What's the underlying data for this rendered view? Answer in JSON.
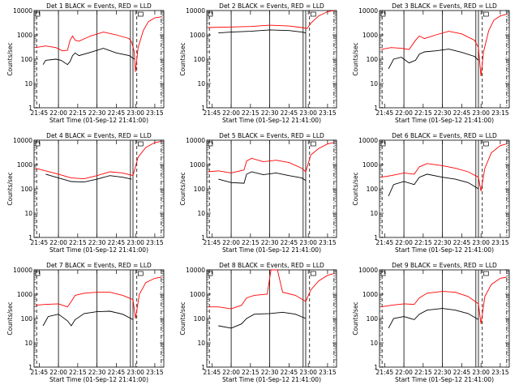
{
  "chart_data": [
    {
      "type": "line",
      "title": "Det  1  BLACK = Events, RED = LLD",
      "xlabel": "Start Time (01-Sep-12 21:41:00)",
      "ylabel": "Counts/sec",
      "ylim": [
        1,
        10000
      ],
      "yscale": "log",
      "xlim": [
        "21:41",
        "23:22"
      ],
      "xticks": [
        "21:45",
        "22:00",
        "22:15",
        "22:30",
        "22:45",
        "23:00",
        "23:15"
      ],
      "yticks": [
        "1",
        "10",
        "100",
        "1000",
        "10000"
      ],
      "series": [
        {
          "name": "Events",
          "color": "#000000",
          "x": [
            "21:48",
            "21:50",
            "21:58",
            "22:02",
            "22:07",
            "22:09",
            "22:11",
            "22:13",
            "22:16",
            "22:25",
            "22:35",
            "22:45",
            "22:55",
            "22:57",
            "22:59"
          ],
          "values": [
            60,
            90,
            100,
            90,
            60,
            80,
            140,
            180,
            140,
            190,
            280,
            180,
            140,
            120,
            100
          ]
        },
        {
          "name": "LLD",
          "color": "#ff0000",
          "x": [
            "21:42",
            "21:50",
            "21:58",
            "22:03",
            "22:07",
            "22:09",
            "22:11",
            "22:13",
            "22:16",
            "22:25",
            "22:35",
            "22:45",
            "22:55",
            "22:57",
            "22:59",
            "23:00",
            "23:02",
            "23:06",
            "23:10",
            "23:15",
            "23:20"
          ],
          "values": [
            300,
            350,
            300,
            220,
            230,
            600,
            900,
            600,
            550,
            900,
            1300,
            1000,
            700,
            500,
            200,
            30,
            300,
            1500,
            3500,
            5000,
            5500
          ]
        }
      ]
    },
    {
      "type": "line",
      "title": "Det  2  BLACK = Events, RED = LLD",
      "xlabel": "Start Time (01-Sep-12 21:41:00)",
      "ylabel": "Counts/sec",
      "ylim": [
        1,
        10000
      ],
      "yscale": "log",
      "xlim": [
        "21:41",
        "23:22"
      ],
      "xticks": [
        "21:45",
        "22:00",
        "22:15",
        "22:30",
        "22:45",
        "23:00",
        "23:15"
      ],
      "yticks": [
        "1",
        "10",
        "100",
        "1000",
        "10000"
      ],
      "series": [
        {
          "name": "Events",
          "color": "#000000",
          "x": [
            "21:50",
            "22:00",
            "22:15",
            "22:30",
            "22:45",
            "22:55",
            "22:58"
          ],
          "values": [
            1200,
            1300,
            1400,
            1600,
            1500,
            1300,
            1200
          ]
        },
        {
          "name": "LLD",
          "color": "#ff0000",
          "x": [
            "21:42",
            "22:00",
            "22:15",
            "22:30",
            "22:45",
            "22:55",
            "22:59",
            "23:02",
            "23:08",
            "23:15",
            "23:20"
          ],
          "values": [
            2000,
            2100,
            2200,
            2500,
            2300,
            2000,
            1800,
            3000,
            6000,
            9000,
            10000
          ]
        }
      ]
    },
    {
      "type": "line",
      "title": "Det  3  BLACK = Events, RED = LLD",
      "xlabel": "Start Time (01-Sep-12 21:41:00)",
      "ylabel": "Counts/sec",
      "ylim": [
        1,
        10000
      ],
      "yscale": "log",
      "xlim": [
        "21:41",
        "23:22"
      ],
      "xticks": [
        "21:45",
        "22:00",
        "22:15",
        "22:30",
        "22:45",
        "23:00",
        "23:15"
      ],
      "yticks": [
        "1",
        "10",
        "100",
        "1000",
        "10000"
      ],
      "series": [
        {
          "name": "Events",
          "color": "#000000",
          "x": [
            "21:48",
            "21:52",
            "21:58",
            "22:04",
            "22:09",
            "22:12",
            "22:16",
            "22:25",
            "22:35",
            "22:45",
            "22:55",
            "22:58"
          ],
          "values": [
            40,
            100,
            120,
            70,
            90,
            160,
            200,
            220,
            260,
            190,
            130,
            90
          ]
        },
        {
          "name": "LLD",
          "color": "#ff0000",
          "x": [
            "21:42",
            "21:50",
            "21:58",
            "22:04",
            "22:09",
            "22:12",
            "22:16",
            "22:25",
            "22:35",
            "22:45",
            "22:55",
            "22:58",
            "23:00",
            "23:02",
            "23:06",
            "23:10",
            "23:15",
            "23:20"
          ],
          "values": [
            250,
            300,
            280,
            250,
            600,
            900,
            700,
            1000,
            1400,
            1100,
            600,
            300,
            20,
            200,
            1500,
            4000,
            6000,
            7000
          ]
        }
      ]
    },
    {
      "type": "line",
      "title": "Det  4  BLACK = Events, RED = LLD",
      "xlabel": "Start Time (01-Sep-12 21:41:00)",
      "ylabel": "Counts/sec",
      "ylim": [
        1,
        10000
      ],
      "yscale": "log",
      "xlim": [
        "21:41",
        "23:22"
      ],
      "xticks": [
        "21:45",
        "22:00",
        "22:15",
        "22:30",
        "22:45",
        "23:00",
        "23:15"
      ],
      "yticks": [
        "1",
        "10",
        "100",
        "1000",
        "10000"
      ],
      "series": [
        {
          "name": "Events",
          "color": "#000000",
          "x": [
            "21:50",
            "22:00",
            "22:10",
            "22:20",
            "22:30",
            "22:40",
            "22:50",
            "22:57"
          ],
          "values": [
            400,
            280,
            200,
            190,
            250,
            350,
            300,
            250
          ]
        },
        {
          "name": "LLD",
          "color": "#ff0000",
          "x": [
            "21:42",
            "21:50",
            "22:00",
            "22:10",
            "22:20",
            "22:30",
            "22:40",
            "22:50",
            "22:58",
            "23:02",
            "23:08",
            "23:15",
            "23:20"
          ],
          "values": [
            700,
            550,
            400,
            280,
            260,
            350,
            500,
            450,
            350,
            2000,
            5000,
            8000,
            9000
          ]
        }
      ]
    },
    {
      "type": "line",
      "title": "Det  5  BLACK = Events, RED = LLD",
      "xlabel": "Start Time (01-Sep-12 21:41:00)",
      "ylabel": "Counts/sec",
      "ylim": [
        1,
        10000
      ],
      "yscale": "log",
      "xlim": [
        "21:41",
        "23:22"
      ],
      "xticks": [
        "21:45",
        "22:00",
        "22:15",
        "22:30",
        "22:45",
        "23:00",
        "23:15"
      ],
      "yticks": [
        "1",
        "10",
        "100",
        "1000",
        "10000"
      ],
      "series": [
        {
          "name": "Events",
          "color": "#000000",
          "x": [
            "21:50",
            "22:00",
            "22:10",
            "22:12",
            "22:16",
            "22:25",
            "22:35",
            "22:45",
            "22:55",
            "22:58"
          ],
          "values": [
            250,
            180,
            170,
            400,
            500,
            380,
            450,
            350,
            280,
            220
          ]
        },
        {
          "name": "LLD",
          "color": "#ff0000",
          "x": [
            "21:42",
            "21:50",
            "22:00",
            "22:10",
            "22:12",
            "22:16",
            "22:25",
            "22:35",
            "22:45",
            "22:55",
            "22:58",
            "23:02",
            "23:08",
            "23:15",
            "23:20"
          ],
          "values": [
            500,
            550,
            450,
            600,
            1400,
            1800,
            1300,
            1500,
            1200,
            700,
            500,
            2500,
            4500,
            7000,
            8000
          ]
        }
      ]
    },
    {
      "type": "line",
      "title": "Det  6  BLACK = Events, RED = LLD",
      "xlabel": "Start Time (01-Sep-12 21:41:00)",
      "ylabel": "Counts/sec",
      "ylim": [
        1,
        10000
      ],
      "yscale": "log",
      "xlim": [
        "21:41",
        "23:22"
      ],
      "xticks": [
        "21:45",
        "22:00",
        "22:15",
        "22:30",
        "22:45",
        "23:00",
        "23:15"
      ],
      "yticks": [
        "1",
        "10",
        "100",
        "1000",
        "10000"
      ],
      "series": [
        {
          "name": "Events",
          "color": "#000000",
          "x": [
            "21:48",
            "21:52",
            "22:00",
            "22:08",
            "22:12",
            "22:18",
            "22:30",
            "22:40",
            "22:50",
            "22:58"
          ],
          "values": [
            50,
            150,
            200,
            150,
            300,
            400,
            300,
            250,
            180,
            100
          ]
        },
        {
          "name": "LLD",
          "color": "#ff0000",
          "x": [
            "21:42",
            "21:50",
            "22:00",
            "22:08",
            "22:12",
            "22:18",
            "22:30",
            "22:40",
            "22:50",
            "22:58",
            "23:00",
            "23:03",
            "23:08",
            "23:15",
            "23:20"
          ],
          "values": [
            300,
            350,
            450,
            400,
            800,
            1100,
            900,
            700,
            500,
            300,
            80,
            700,
            3000,
            6000,
            7000
          ]
        }
      ]
    },
    {
      "type": "line",
      "title": "Det  7  BLACK = Events, RED = LLD",
      "xlabel": "Start Time (01-Sep-12 21:41:00)",
      "ylabel": "Counts/sec",
      "ylim": [
        1,
        10000
      ],
      "yscale": "log",
      "xlim": [
        "21:41",
        "23:22"
      ],
      "xticks": [
        "21:45",
        "22:00",
        "22:15",
        "22:30",
        "22:45",
        "23:00",
        "23:15"
      ],
      "yticks": [
        "1",
        "10",
        "100",
        "1000",
        "10000"
      ],
      "series": [
        {
          "name": "Events",
          "color": "#000000",
          "x": [
            "21:48",
            "21:52",
            "22:00",
            "22:07",
            "22:10",
            "22:13",
            "22:20",
            "22:30",
            "22:40",
            "22:50",
            "22:58"
          ],
          "values": [
            50,
            120,
            150,
            80,
            50,
            90,
            160,
            190,
            200,
            150,
            90
          ]
        },
        {
          "name": "LLD",
          "color": "#ff0000",
          "x": [
            "21:42",
            "21:50",
            "22:00",
            "22:07",
            "22:10",
            "22:13",
            "22:20",
            "22:30",
            "22:40",
            "22:50",
            "22:58",
            "23:00",
            "23:03",
            "23:08",
            "23:15",
            "23:20"
          ],
          "values": [
            350,
            380,
            400,
            300,
            500,
            900,
            1100,
            1200,
            1200,
            900,
            600,
            100,
            1000,
            3000,
            4500,
            5000
          ]
        }
      ]
    },
    {
      "type": "line",
      "title": "Det  8  BLACK = Events, RED = LLD",
      "xlabel": "Start Time (01-Sep-12 21:41:00)",
      "ylabel": "Counts/sec",
      "ylim": [
        1,
        10000
      ],
      "yscale": "log",
      "xlim": [
        "21:41",
        "23:22"
      ],
      "xticks": [
        "21:45",
        "22:00",
        "22:15",
        "22:30",
        "22:45",
        "23:00",
        "23:15"
      ],
      "yticks": [
        "1",
        "10",
        "100",
        "1000",
        "10000"
      ],
      "series": [
        {
          "name": "Events",
          "color": "#000000",
          "x": [
            "21:50",
            "22:00",
            "22:08",
            "22:12",
            "22:18",
            "22:30",
            "22:40",
            "22:50",
            "22:58"
          ],
          "values": [
            50,
            40,
            60,
            100,
            150,
            160,
            180,
            150,
            100
          ]
        },
        {
          "name": "LLD",
          "color": "#ff0000",
          "x": [
            "21:42",
            "21:50",
            "22:00",
            "22:08",
            "22:12",
            "22:18",
            "22:28",
            "22:31",
            "22:36",
            "22:40",
            "22:50",
            "22:58",
            "23:02",
            "23:08",
            "23:15",
            "23:20"
          ],
          "values": [
            300,
            300,
            250,
            350,
            700,
            900,
            1000,
            10000,
            10000,
            1200,
            900,
            500,
            1500,
            3500,
            6000,
            7000
          ]
        }
      ]
    },
    {
      "type": "line",
      "title": "Det  9  BLACK = Events, RED = LLD",
      "xlabel": "Start Time (01-Sep-12 21:41:00)",
      "ylabel": "Counts/sec",
      "ylim": [
        1,
        10000
      ],
      "yscale": "log",
      "xlim": [
        "21:41",
        "23:22"
      ],
      "xticks": [
        "21:45",
        "22:00",
        "22:15",
        "22:30",
        "22:45",
        "23:00",
        "23:15"
      ],
      "yticks": [
        "1",
        "10",
        "100",
        "1000",
        "10000"
      ],
      "series": [
        {
          "name": "Events",
          "color": "#000000",
          "x": [
            "21:48",
            "21:52",
            "22:00",
            "22:08",
            "22:12",
            "22:18",
            "22:30",
            "22:40",
            "22:50",
            "22:58"
          ],
          "values": [
            40,
            100,
            120,
            90,
            150,
            220,
            260,
            220,
            160,
            90
          ]
        },
        {
          "name": "LLD",
          "color": "#ff0000",
          "x": [
            "21:42",
            "21:50",
            "22:00",
            "22:08",
            "22:12",
            "22:18",
            "22:30",
            "22:40",
            "22:50",
            "22:58",
            "23:00",
            "23:03",
            "23:08",
            "23:15",
            "23:20"
          ],
          "values": [
            300,
            350,
            400,
            380,
            700,
            1100,
            1300,
            1200,
            800,
            400,
            60,
            800,
            2500,
            4500,
            5000
          ]
        }
      ]
    }
  ]
}
